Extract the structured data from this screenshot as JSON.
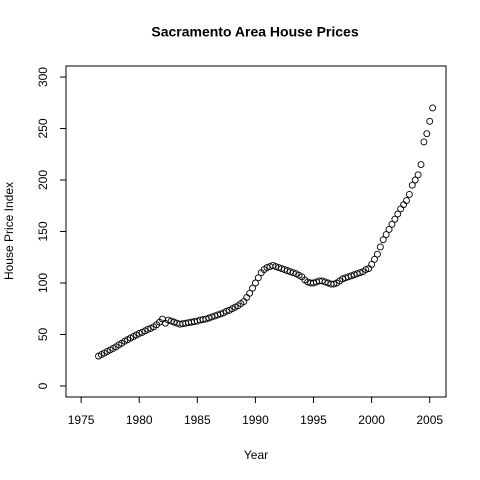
{
  "chart_data": {
    "type": "scatter",
    "title": "Sacramento Area House Prices",
    "xlabel": "Year",
    "ylabel": "House Price Index",
    "x": [
      1976.5,
      1976.75,
      1977,
      1977.25,
      1977.5,
      1977.75,
      1978,
      1978.25,
      1978.5,
      1978.75,
      1979,
      1979.25,
      1979.5,
      1979.75,
      1980,
      1980.25,
      1980.5,
      1980.75,
      1981,
      1981.25,
      1981.5,
      1981.75,
      1982,
      1982.25,
      1982.5,
      1982.75,
      1983,
      1983.25,
      1983.5,
      1983.75,
      1984,
      1984.25,
      1984.5,
      1984.75,
      1985,
      1985.25,
      1985.5,
      1985.75,
      1986,
      1986.25,
      1986.5,
      1986.75,
      1987,
      1987.25,
      1987.5,
      1987.75,
      1988,
      1988.25,
      1988.5,
      1988.75,
      1989,
      1989.25,
      1989.5,
      1989.75,
      1990,
      1990.25,
      1990.5,
      1990.75,
      1991,
      1991.25,
      1991.5,
      1991.75,
      1992,
      1992.25,
      1992.5,
      1992.75,
      1993,
      1993.25,
      1993.5,
      1993.75,
      1994,
      1994.25,
      1994.5,
      1994.75,
      1995,
      1995.25,
      1995.5,
      1995.75,
      1996,
      1996.25,
      1996.5,
      1996.75,
      1997,
      1997.25,
      1997.5,
      1997.75,
      1998,
      1998.25,
      1998.5,
      1998.75,
      1999,
      1999.25,
      1999.5,
      1999.75,
      2000,
      2000.25,
      2000.5,
      2000.75,
      2001,
      2001.25,
      2001.5,
      2001.75,
      2002,
      2002.25,
      2002.5,
      2002.75,
      2003,
      2003.25,
      2003.5,
      2003.75,
      2004,
      2004.25,
      2004.5,
      2004.75,
      2005,
      2005.25
    ],
    "values": [
      29,
      30.5,
      32,
      33.5,
      35,
      36.5,
      38,
      40,
      41.5,
      43.5,
      45,
      46.5,
      48,
      49.5,
      51,
      52,
      53.5,
      55,
      56,
      57.5,
      59.5,
      62,
      65,
      61,
      64,
      63,
      62,
      61,
      60,
      60.5,
      61,
      61.5,
      62,
      62.5,
      63,
      64,
      64.5,
      65,
      66,
      67,
      68,
      69,
      70,
      71,
      72.5,
      73.5,
      75,
      76.5,
      78,
      80,
      82,
      86,
      90,
      95,
      100,
      105,
      110,
      113,
      115,
      116,
      117,
      116,
      115,
      114,
      113,
      112,
      111,
      110,
      109,
      107.5,
      106,
      103,
      101,
      100,
      100,
      101,
      102,
      102,
      101,
      100,
      99,
      99,
      100,
      102,
      104,
      105,
      106,
      107,
      108,
      109,
      110,
      111,
      113,
      114,
      118,
      123,
      128,
      135,
      142,
      147,
      152,
      157,
      162,
      167,
      172,
      176,
      180,
      186,
      195,
      200,
      205,
      215,
      237,
      245,
      257,
      270
    ],
    "color": "#000000",
    "xlim": [
      1973.7,
      2006.4
    ],
    "ylim": [
      -10.7,
      310.7
    ],
    "xticks": [
      1975,
      1980,
      1985,
      1990,
      1995,
      2000,
      2005
    ],
    "yticks": [
      0,
      50,
      100,
      150,
      200,
      250,
      300
    ],
    "grid": false
  }
}
